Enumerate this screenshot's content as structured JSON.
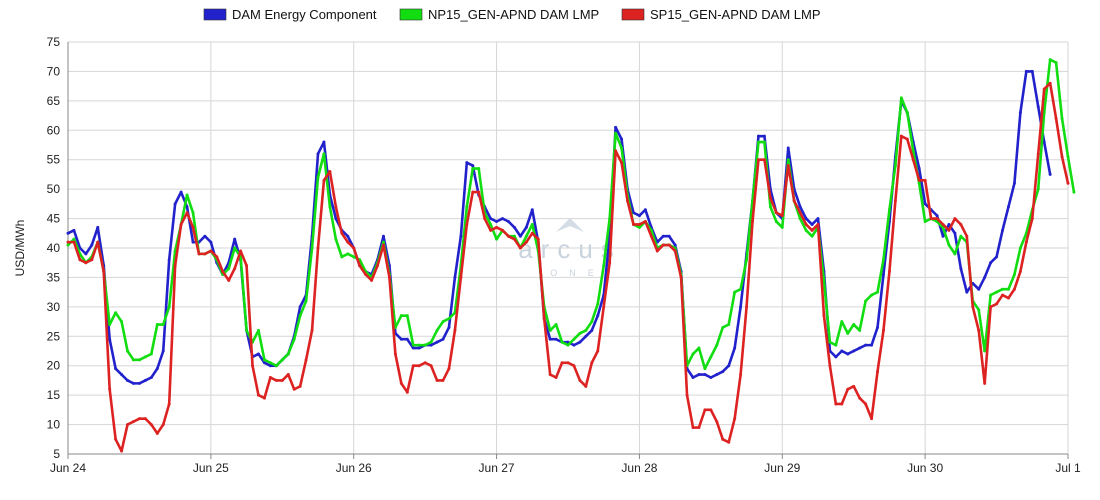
{
  "chart_data": {
    "type": "line",
    "title": "",
    "xlabel": "",
    "ylabel": "USD/MWh",
    "ylim": [
      5,
      75
    ],
    "yticks": [
      5,
      10,
      15,
      20,
      25,
      30,
      35,
      40,
      45,
      50,
      55,
      60,
      65,
      70,
      75
    ],
    "xlim": [
      0,
      168
    ],
    "xticks": [
      {
        "x": 0,
        "label": "Jun 24"
      },
      {
        "x": 24,
        "label": "Jun 25"
      },
      {
        "x": 48,
        "label": "Jun 26"
      },
      {
        "x": 72,
        "label": "Jun 27"
      },
      {
        "x": 96,
        "label": "Jun 28"
      },
      {
        "x": 120,
        "label": "Jun 29"
      },
      {
        "x": 144,
        "label": "Jun 30"
      },
      {
        "x": 168,
        "label": "Jul 1"
      }
    ],
    "grid": true,
    "legend": "top-center",
    "watermark": {
      "name": "arcus",
      "sub": "ONE"
    },
    "series": [
      {
        "name": "DAM Energy Component",
        "color": "#2222cc",
        "values": [
          42.5,
          43,
          40,
          39,
          40.5,
          43.5,
          37,
          24.5,
          19.5,
          18.5,
          17.5,
          17,
          17,
          17.5,
          18,
          19.5,
          22.5,
          38,
          47.5,
          49.5,
          47,
          41,
          41,
          42,
          41,
          37.5,
          35.5,
          37.5,
          41.5,
          38,
          26,
          21.5,
          22,
          20.5,
          20,
          20,
          21,
          22,
          25,
          30,
          32,
          42,
          56,
          58,
          49,
          45,
          43,
          42,
          40,
          37,
          36,
          35.5,
          38,
          42,
          37,
          25.5,
          24.5,
          24.5,
          23,
          23,
          23.5,
          23.5,
          24,
          24.5,
          26.5,
          35,
          42,
          54.5,
          54,
          49,
          47,
          45,
          44.5,
          45,
          44.5,
          43.5,
          42,
          43.5,
          46.5,
          41,
          28,
          24.5,
          24.5,
          24,
          24,
          23.5,
          24,
          25,
          26,
          28.5,
          32,
          42,
          60.5,
          58.5,
          50,
          46,
          45.5,
          46.5,
          43.5,
          41,
          42,
          42,
          40.5,
          36,
          19.5,
          18,
          18.5,
          18.5,
          18,
          18.5,
          19,
          20,
          23,
          30,
          39,
          48,
          59,
          59,
          50,
          46,
          45,
          57,
          50,
          47,
          45,
          44,
          45,
          36,
          22.5,
          21.5,
          22.5,
          22,
          22.5,
          23,
          23.5,
          23.5,
          26.5,
          35.5,
          44.5,
          55.5,
          65,
          63,
          58,
          53.5,
          47.5,
          46.5,
          45.5,
          42,
          44,
          42.5,
          36.5,
          32.5,
          34,
          33,
          35,
          37.5,
          38.5,
          43,
          47,
          51,
          63,
          70,
          70,
          64,
          58,
          52.5
        ]
      },
      {
        "name": "NP15_GEN-APND DAM LMP",
        "color": "#11dd11",
        "values": [
          40.5,
          41.5,
          39,
          37.5,
          38.5,
          41,
          36,
          27,
          29,
          27.5,
          22.5,
          21,
          21,
          21.5,
          22,
          27,
          27,
          30,
          39.5,
          44,
          49,
          46,
          39,
          39,
          39.5,
          38,
          35.5,
          36.5,
          40,
          38.5,
          26,
          24,
          26,
          21,
          20.5,
          20,
          21,
          22,
          24.5,
          28.5,
          31,
          40,
          52,
          56,
          47,
          41.5,
          38.5,
          39,
          38.5,
          38,
          36,
          35,
          37.5,
          41,
          35.5,
          26.5,
          28.5,
          28.5,
          23.5,
          23.5,
          23.5,
          24,
          26,
          27.5,
          28,
          29,
          37,
          47,
          53.5,
          53.5,
          46,
          44,
          41.5,
          43,
          42,
          42,
          40,
          42,
          44,
          39.5,
          30,
          26,
          27,
          24,
          23.5,
          24.5,
          25.5,
          26,
          27.5,
          30.5,
          37,
          45,
          59.5,
          57,
          49,
          44,
          43.5,
          44.5,
          43,
          40,
          40.5,
          40.5,
          40,
          35.5,
          20,
          22,
          23,
          19.5,
          21.5,
          23.5,
          26.5,
          27,
          32.5,
          33,
          38,
          48,
          58,
          58,
          47,
          44.5,
          43.5,
          55,
          48,
          45,
          43,
          42,
          43.5,
          34.5,
          24,
          23.5,
          27.5,
          25.5,
          27,
          26,
          31,
          32,
          32.5,
          38,
          46.5,
          54,
          65.5,
          63,
          56.5,
          51,
          44.5,
          45,
          44.5,
          43.5,
          40.5,
          39,
          42,
          41,
          31,
          29.5,
          22.5,
          32,
          32.5,
          33,
          33,
          35.5,
          40,
          42.5,
          46.5,
          50,
          63,
          72,
          71.5,
          62,
          55.5,
          49.5
        ]
      },
      {
        "name": "SP15_GEN-APND DAM LMP",
        "color": "#dd2222",
        "values": [
          41,
          41,
          38,
          37.5,
          38,
          41,
          36,
          16,
          7.5,
          5.5,
          10,
          10.5,
          11,
          11,
          10,
          8.5,
          10,
          13.5,
          37,
          44,
          46,
          43.5,
          39,
          39,
          39.5,
          38.5,
          36,
          34.5,
          36.5,
          39.5,
          37,
          20,
          15,
          14.5,
          18,
          17.5,
          17.5,
          18.5,
          16,
          16.5,
          21,
          26,
          40,
          51.5,
          53,
          47,
          42.5,
          41,
          40,
          37,
          35.5,
          34.5,
          37,
          40.5,
          35,
          22,
          17,
          15.5,
          20,
          20,
          20.5,
          20,
          17.5,
          17.5,
          19.5,
          26,
          35,
          44,
          49.5,
          49.5,
          45,
          43,
          43.5,
          43,
          42,
          41.5,
          40,
          41,
          42.5,
          41.5,
          28,
          18.5,
          18,
          20.5,
          20.5,
          20,
          17.5,
          16.5,
          20.5,
          22.5,
          30,
          37.5,
          56.5,
          54.5,
          48,
          44,
          44,
          44.5,
          42,
          39.5,
          40.5,
          40.5,
          39.5,
          35,
          15,
          9.5,
          9.5,
          12.5,
          12.5,
          10.5,
          7.5,
          7,
          11,
          18.5,
          30,
          44.5,
          55,
          55,
          48.5,
          46,
          45.5,
          54,
          48,
          46,
          44,
          43,
          44,
          28.5,
          20,
          13.5,
          13.5,
          16,
          16.5,
          14.5,
          13.5,
          11,
          19,
          26,
          36,
          48,
          59,
          58.5,
          55,
          51.5,
          51.5,
          45,
          45,
          44,
          43,
          45,
          44,
          42,
          30,
          26,
          17,
          30,
          30.5,
          32,
          31.5,
          33,
          36,
          41,
          45,
          56,
          67,
          68,
          62,
          55.5,
          51
        ]
      }
    ]
  }
}
